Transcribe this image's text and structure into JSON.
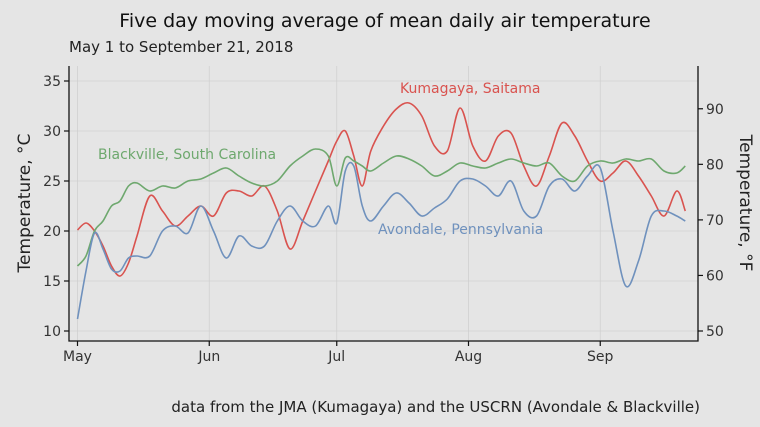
{
  "chart_data": {
    "type": "line",
    "title": "Five day moving average of mean daily air temperature",
    "subtitle": "May 1 to September 21, 2018",
    "caption": "data from the JMA (Kumagaya) and the USCRN (Avondale & Blackville)",
    "ylabel": "Temperature, °C",
    "ylabel_right": "Temperature, °F",
    "ylim": [
      9,
      36.5
    ],
    "y_ticks": [
      10,
      15,
      20,
      25,
      30,
      35
    ],
    "y_ticks_right": [
      50,
      60,
      70,
      80,
      90
    ],
    "xlim": [
      "2018-04-29",
      "2018-09-24"
    ],
    "x_ticks": [
      {
        "date": "2018-05-01",
        "label": "May"
      },
      {
        "date": "2018-06-01",
        "label": "Jun"
      },
      {
        "date": "2018-07-01",
        "label": "Jul"
      },
      {
        "date": "2018-08-01",
        "label": "Aug"
      },
      {
        "date": "2018-09-01",
        "label": "Sep"
      }
    ],
    "grid": true,
    "series": [
      {
        "name": "Kumagaya, Saitama",
        "color": "#d9534f",
        "x": [
          "2018-05-01",
          "2018-05-03",
          "2018-05-05",
          "2018-05-07",
          "2018-05-09",
          "2018-05-11",
          "2018-05-13",
          "2018-05-15",
          "2018-05-18",
          "2018-05-21",
          "2018-05-24",
          "2018-05-27",
          "2018-05-30",
          "2018-06-02",
          "2018-06-05",
          "2018-06-08",
          "2018-06-11",
          "2018-06-14",
          "2018-06-17",
          "2018-06-20",
          "2018-06-23",
          "2018-06-26",
          "2018-06-29",
          "2018-07-01",
          "2018-07-03",
          "2018-07-05",
          "2018-07-07",
          "2018-07-09",
          "2018-07-12",
          "2018-07-15",
          "2018-07-18",
          "2018-07-21",
          "2018-07-24",
          "2018-07-27",
          "2018-07-30",
          "2018-08-02",
          "2018-08-05",
          "2018-08-08",
          "2018-08-11",
          "2018-08-14",
          "2018-08-17",
          "2018-08-20",
          "2018-08-23",
          "2018-08-26",
          "2018-08-29",
          "2018-09-01",
          "2018-09-04",
          "2018-09-07",
          "2018-09-10",
          "2018-09-13",
          "2018-09-16",
          "2018-09-19",
          "2018-09-21"
        ],
        "values": [
          20.1,
          20.8,
          20.0,
          18.5,
          16.5,
          15.5,
          16.8,
          19.5,
          23.5,
          22.0,
          20.5,
          21.5,
          22.5,
          21.5,
          23.8,
          24.0,
          23.5,
          24.5,
          22.0,
          18.2,
          21.0,
          24.0,
          27.0,
          29.0,
          30.0,
          27.5,
          24.5,
          28.0,
          30.5,
          32.2,
          32.8,
          31.5,
          28.5,
          28.0,
          32.3,
          28.5,
          27.0,
          29.5,
          29.8,
          26.5,
          24.5,
          27.5,
          30.8,
          29.5,
          27.0,
          25.0,
          25.8,
          27.0,
          25.5,
          23.5,
          21.5,
          24.0,
          22.0
        ]
      },
      {
        "name": "Blackville, South Carolina",
        "color": "#6ea86e",
        "x": [
          "2018-05-01",
          "2018-05-03",
          "2018-05-05",
          "2018-05-07",
          "2018-05-09",
          "2018-05-11",
          "2018-05-13",
          "2018-05-15",
          "2018-05-18",
          "2018-05-21",
          "2018-05-24",
          "2018-05-27",
          "2018-05-30",
          "2018-06-02",
          "2018-06-05",
          "2018-06-08",
          "2018-06-11",
          "2018-06-14",
          "2018-06-17",
          "2018-06-20",
          "2018-06-23",
          "2018-06-26",
          "2018-06-29",
          "2018-07-01",
          "2018-07-03",
          "2018-07-05",
          "2018-07-07",
          "2018-07-09",
          "2018-07-12",
          "2018-07-15",
          "2018-07-18",
          "2018-07-21",
          "2018-07-24",
          "2018-07-27",
          "2018-07-30",
          "2018-08-02",
          "2018-08-05",
          "2018-08-08",
          "2018-08-11",
          "2018-08-14",
          "2018-08-17",
          "2018-08-20",
          "2018-08-23",
          "2018-08-26",
          "2018-08-29",
          "2018-09-01",
          "2018-09-04",
          "2018-09-07",
          "2018-09-10",
          "2018-09-13",
          "2018-09-16",
          "2018-09-19",
          "2018-09-21"
        ],
        "values": [
          16.5,
          17.5,
          20.0,
          21.0,
          22.5,
          23.0,
          24.5,
          24.8,
          24.0,
          24.5,
          24.3,
          25.0,
          25.2,
          25.8,
          26.3,
          25.5,
          24.8,
          24.5,
          25.0,
          26.5,
          27.5,
          28.2,
          27.5,
          24.5,
          27.3,
          27.0,
          26.5,
          26.0,
          26.8,
          27.5,
          27.2,
          26.5,
          25.5,
          26.0,
          26.8,
          26.5,
          26.3,
          26.8,
          27.2,
          26.8,
          26.5,
          26.8,
          25.5,
          25.0,
          26.5,
          27.0,
          26.8,
          27.2,
          27.0,
          27.2,
          26.0,
          25.8,
          26.5
        ]
      },
      {
        "name": "Avondale, Pennsylvania",
        "color": "#6f91bd",
        "x": [
          "2018-05-01",
          "2018-05-03",
          "2018-05-05",
          "2018-05-07",
          "2018-05-09",
          "2018-05-11",
          "2018-05-13",
          "2018-05-15",
          "2018-05-18",
          "2018-05-21",
          "2018-05-24",
          "2018-05-27",
          "2018-05-30",
          "2018-06-02",
          "2018-06-05",
          "2018-06-08",
          "2018-06-11",
          "2018-06-14",
          "2018-06-17",
          "2018-06-20",
          "2018-06-23",
          "2018-06-26",
          "2018-06-29",
          "2018-07-01",
          "2018-07-03",
          "2018-07-05",
          "2018-07-07",
          "2018-07-09",
          "2018-07-12",
          "2018-07-15",
          "2018-07-18",
          "2018-07-21",
          "2018-07-24",
          "2018-07-27",
          "2018-07-30",
          "2018-08-02",
          "2018-08-05",
          "2018-08-08",
          "2018-08-11",
          "2018-08-14",
          "2018-08-17",
          "2018-08-20",
          "2018-08-23",
          "2018-08-26",
          "2018-08-29",
          "2018-09-01",
          "2018-09-04",
          "2018-09-07",
          "2018-09-10",
          "2018-09-13",
          "2018-09-16",
          "2018-09-19",
          "2018-09-21"
        ],
        "values": [
          11.2,
          16.0,
          19.8,
          18.2,
          16.2,
          16.0,
          17.3,
          17.5,
          17.5,
          20.0,
          20.5,
          19.8,
          22.5,
          20.0,
          17.3,
          19.5,
          18.5,
          18.5,
          21.0,
          22.5,
          21.0,
          20.5,
          22.5,
          20.8,
          26.0,
          26.5,
          22.5,
          21.0,
          22.5,
          23.8,
          22.8,
          21.5,
          22.3,
          23.2,
          25.0,
          25.2,
          24.5,
          23.5,
          25.0,
          22.0,
          21.5,
          24.5,
          25.2,
          24.0,
          25.5,
          26.3,
          20.0,
          14.5,
          17.0,
          21.5,
          22.0,
          21.5,
          21.0
        ]
      }
    ]
  }
}
